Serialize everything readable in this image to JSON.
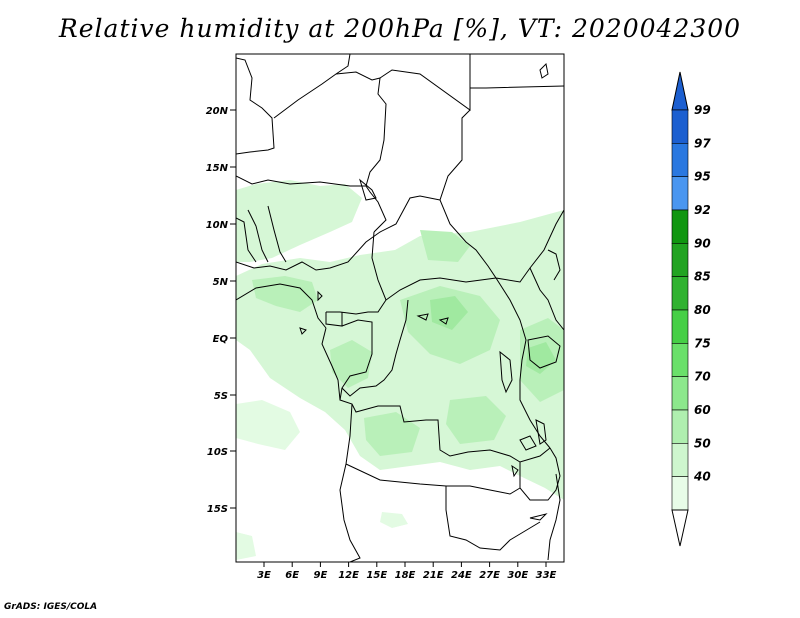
{
  "title": "Relative humidity at 200hPa [%], VT: 2020042300",
  "credit": "GrADS: IGES/COLA",
  "map": {
    "lat_labels": [
      "20N",
      "15N",
      "10N",
      "5N",
      "EQ",
      "5S",
      "10S",
      "15S"
    ],
    "lon_labels": [
      "3E",
      "6E",
      "9E",
      "12E",
      "15E",
      "18E",
      "21E",
      "24E",
      "27E",
      "30E",
      "33E"
    ],
    "region": "Central Africa"
  },
  "colorbar": {
    "labels": [
      "99",
      "97",
      "95",
      "92",
      "90",
      "85",
      "80",
      "75",
      "70",
      "60",
      "50",
      "40"
    ],
    "colors": [
      "#1c5fd0",
      "#2a78e0",
      "#4a96f0",
      "#119611",
      "#22a322",
      "#30b230",
      "#46cf46",
      "#6ae06a",
      "#8ce88c",
      "#afefaf",
      "#cef6ce",
      "#e8fce8"
    ],
    "extend": "both"
  }
}
